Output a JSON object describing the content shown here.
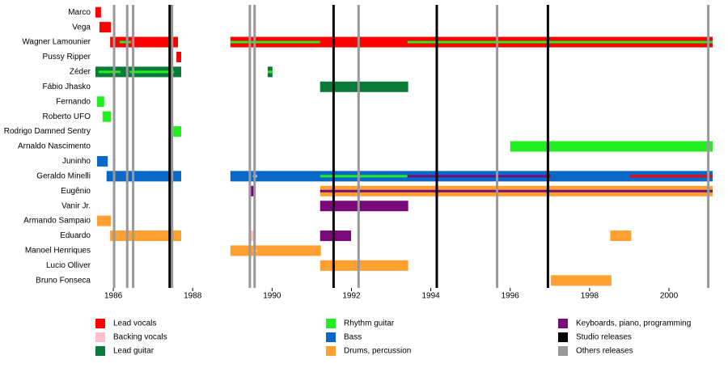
{
  "chart_data": {
    "type": "timeline",
    "xlim": [
      1985.55,
      2001.1
    ],
    "xticks": [
      1986,
      1988,
      1990,
      1992,
      1994,
      1996,
      1998,
      2000
    ],
    "roles": [
      {
        "name": "Lead vocals",
        "color": "#ff0000"
      },
      {
        "name": "Backing vocals",
        "color": "#ffc0cb"
      },
      {
        "name": "Lead guitar",
        "color": "#0a7a3a"
      },
      {
        "name": "Rhythm guitar",
        "color": "#22ee22"
      },
      {
        "name": "Bass",
        "color": "#0a68c8"
      },
      {
        "name": "Drums, percussion",
        "color": "#ffa030"
      },
      {
        "name": "Keyboards, piano, programming",
        "color": "#7a0a7a"
      },
      {
        "name": "Studio releases",
        "color": "#000000"
      },
      {
        "name": "Others releases",
        "color": "#999999"
      }
    ],
    "studio_releases": [
      1987.42,
      1991.55,
      1994.15,
      1996.95
    ],
    "other_releases": [
      1986.02,
      1986.35,
      1986.5,
      1987.48,
      1989.44,
      1989.56,
      1992.18,
      1995.67,
      2000.99
    ],
    "rows": [
      {
        "name": "Marco",
        "bars": [
          {
            "role": 0,
            "start": 1985.55,
            "end": 1985.69
          }
        ],
        "stripes": []
      },
      {
        "name": "Vega",
        "bars": [
          {
            "role": 0,
            "start": 1985.65,
            "end": 1985.94
          }
        ],
        "stripes": []
      },
      {
        "name": "Wagner Lamounier",
        "bars": [
          {
            "role": 0,
            "start": 1985.92,
            "end": 1987.63
          },
          {
            "role": 0,
            "start": 1988.95,
            "end": 2001.1
          }
        ],
        "stripes": [
          {
            "role": 3,
            "start": 1986.16,
            "end": 1986.45
          },
          {
            "role": 3,
            "start": 1988.95,
            "end": 1991.21
          },
          {
            "role": 3,
            "start": 1993.41,
            "end": 2001.1
          }
        ]
      },
      {
        "name": "Pussy Ripper",
        "bars": [
          {
            "role": 0,
            "start": 1987.59,
            "end": 1987.71
          }
        ],
        "stripes": []
      },
      {
        "name": "Zéder",
        "bars": [
          {
            "role": 2,
            "start": 1985.55,
            "end": 1987.71
          },
          {
            "role": 2,
            "start": 1989.89,
            "end": 1990.01
          }
        ],
        "stripes": [
          {
            "role": 3,
            "start": 1985.63,
            "end": 1986.18
          },
          {
            "role": 3,
            "start": 1986.41,
            "end": 1987.53
          },
          {
            "role": 3,
            "start": 1989.89,
            "end": 1990.01
          }
        ]
      },
      {
        "name": "Fábio Jhasko",
        "bars": [
          {
            "role": 2,
            "start": 1991.21,
            "end": 1993.43
          }
        ],
        "stripes": []
      },
      {
        "name": "Fernando",
        "bars": [
          {
            "role": 3,
            "start": 1985.59,
            "end": 1985.77
          }
        ],
        "stripes": []
      },
      {
        "name": "Roberto UFO",
        "bars": [
          {
            "role": 3,
            "start": 1985.73,
            "end": 1985.94
          }
        ],
        "stripes": []
      },
      {
        "name": "Rodrigo Damned Sentry",
        "bars": [
          {
            "role": 3,
            "start": 1987.51,
            "end": 1987.71
          }
        ],
        "stripes": []
      },
      {
        "name": "Arnaldo Nascimento",
        "bars": [
          {
            "role": 3,
            "start": 1996.0,
            "end": 2001.1
          }
        ],
        "stripes": []
      },
      {
        "name": "Juninho",
        "bars": [
          {
            "role": 4,
            "start": 1985.59,
            "end": 1985.86
          }
        ],
        "stripes": []
      },
      {
        "name": "Geraldo Minelli",
        "bars": [
          {
            "role": 4,
            "start": 1985.83,
            "end": 1987.71
          },
          {
            "role": 4,
            "start": 1988.95,
            "end": 2001.1
          }
        ],
        "stripes": [
          {
            "role": 1,
            "start": 1989.52,
            "end": 1989.62
          },
          {
            "role": 3,
            "start": 1991.21,
            "end": 1993.41
          },
          {
            "role": 6,
            "start": 1993.41,
            "end": 1997.02
          },
          {
            "role": 0,
            "start": 1999.01,
            "end": 2001.1
          }
        ]
      },
      {
        "name": "Eugênio",
        "bars": [
          {
            "role": 6,
            "start": 1989.44,
            "end": 1989.58
          },
          {
            "role": 5,
            "start": 1991.21,
            "end": 2001.1
          }
        ],
        "stripes": [
          {
            "role": 6,
            "start": 1991.21,
            "end": 2001.1
          }
        ]
      },
      {
        "name": "Vanir Jr.",
        "bars": [
          {
            "role": 6,
            "start": 1991.21,
            "end": 1993.43
          }
        ],
        "stripes": []
      },
      {
        "name": "Armando Sampaio",
        "bars": [
          {
            "role": 5,
            "start": 1985.59,
            "end": 1985.94
          }
        ],
        "stripes": []
      },
      {
        "name": "Eduardo",
        "bars": [
          {
            "role": 5,
            "start": 1985.92,
            "end": 1987.71
          },
          {
            "role": 1,
            "start": 1989.44,
            "end": 1989.58
          },
          {
            "role": 6,
            "start": 1991.21,
            "end": 1991.99
          },
          {
            "role": 5,
            "start": 1998.52,
            "end": 1999.05
          }
        ],
        "stripes": []
      },
      {
        "name": "Manoel Henriques",
        "bars": [
          {
            "role": 5,
            "start": 1988.95,
            "end": 1991.23
          }
        ],
        "stripes": [
          {
            "role": 1,
            "start": 1989.52,
            "end": 1989.62
          }
        ]
      },
      {
        "name": "Lucio Olliver",
        "bars": [
          {
            "role": 5,
            "start": 1991.21,
            "end": 1993.43
          }
        ],
        "stripes": []
      },
      {
        "name": "Bruno Fonseca",
        "bars": [
          {
            "role": 5,
            "start": 1997.02,
            "end": 1998.55
          }
        ],
        "stripes": []
      }
    ]
  }
}
